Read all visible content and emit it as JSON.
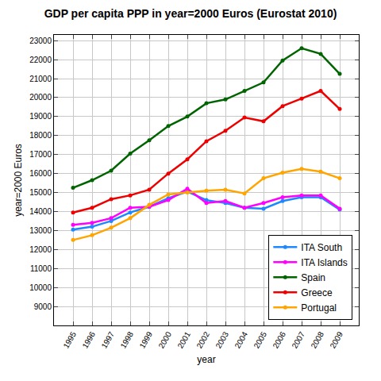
{
  "chart_data": {
    "type": "line",
    "title": "GDP per capita PPP in year=2000 Euros (Eurostat 2010)",
    "x_label": "year",
    "y_label": "year=2000 Euros",
    "x": [
      1995,
      1996,
      1997,
      1998,
      1999,
      2000,
      2001,
      2002,
      2003,
      2004,
      2005,
      2006,
      2007,
      2008,
      2009
    ],
    "series": [
      {
        "name": "ITA South",
        "color": "#1e88ff",
        "values": [
          13050,
          13200,
          13500,
          13950,
          14250,
          14700,
          15050,
          14600,
          14450,
          14200,
          14150,
          14550,
          14750,
          14750,
          14100
        ]
      },
      {
        "name": "ITA Islands",
        "color": "#ff00ff",
        "values": [
          13300,
          13400,
          13650,
          14200,
          14250,
          14600,
          15200,
          14450,
          14550,
          14200,
          14450,
          14750,
          14850,
          14850,
          14150
        ]
      },
      {
        "name": "Spain",
        "color": "#006400",
        "values": [
          15250,
          15650,
          16150,
          17050,
          17750,
          18500,
          19000,
          19700,
          19900,
          20350,
          20800,
          21950,
          22600,
          22300,
          21250
        ]
      },
      {
        "name": "Greece",
        "color": "#ee0000",
        "values": [
          13950,
          14200,
          14650,
          14850,
          15150,
          16000,
          16750,
          17700,
          18250,
          18950,
          18750,
          19550,
          19950,
          20350,
          19400
        ]
      },
      {
        "name": "Portugal",
        "color": "#ffa500",
        "values": [
          12500,
          12750,
          13150,
          13650,
          14350,
          14900,
          15000,
          15100,
          15150,
          14950,
          15750,
          16050,
          16250,
          16100,
          15750
        ]
      }
    ],
    "xlim": [
      1994,
      2010
    ],
    "xticks": [
      1995,
      1996,
      1997,
      1998,
      1999,
      2000,
      2001,
      2002,
      2003,
      2004,
      2005,
      2006,
      2007,
      2008,
      2009
    ],
    "ylim": [
      8000,
      23300
    ],
    "yticks": [
      9000,
      10000,
      11000,
      12000,
      13000,
      14000,
      15000,
      16000,
      17000,
      18000,
      19000,
      20000,
      21000,
      22000,
      23000
    ],
    "grid": true,
    "legend": "lower right",
    "marker": "circle"
  }
}
